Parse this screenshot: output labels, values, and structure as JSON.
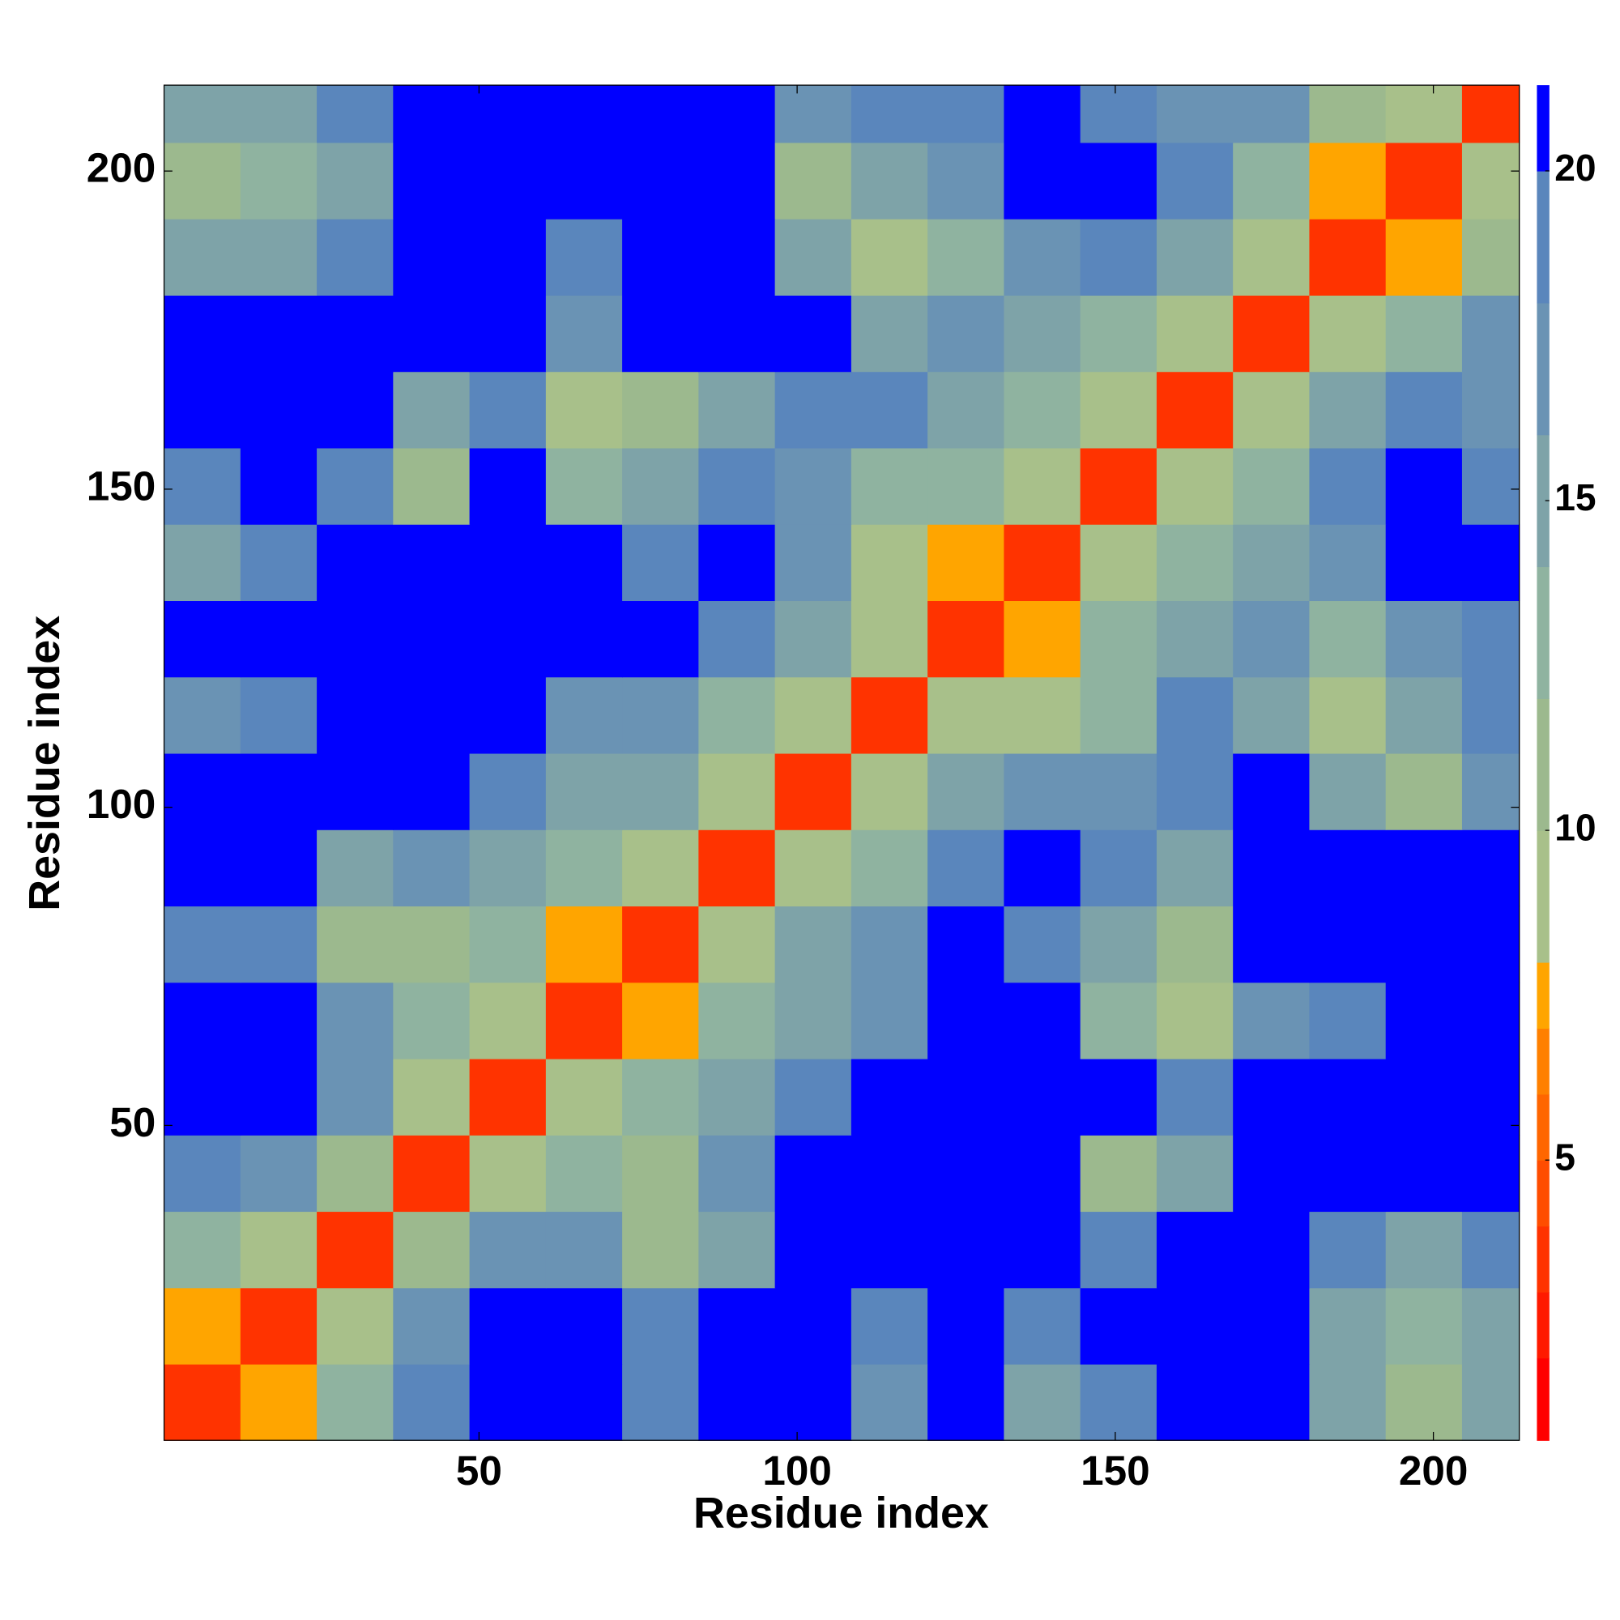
{
  "chart_data": {
    "type": "heatmap",
    "xlabel": "Residue index",
    "ylabel": "Residue index",
    "xbins": [
      0.5,
      12.5,
      24.5,
      36.5,
      48.5,
      60.5,
      72.5,
      84.5,
      96.5,
      108.5,
      120.5,
      132.5,
      144.5,
      156.5,
      168.5,
      180.5,
      192.5,
      204.5,
      213.5
    ],
    "ybins": [
      0.5,
      12.5,
      24.5,
      36.5,
      48.5,
      60.5,
      72.5,
      84.5,
      96.5,
      108.5,
      120.5,
      132.5,
      144.5,
      156.5,
      168.5,
      180.5,
      192.5,
      204.5,
      213.5
    ],
    "z": [
      [
        3,
        7,
        12,
        18,
        21,
        21,
        19,
        21,
        21,
        17,
        21,
        15,
        19,
        21,
        21,
        14,
        11,
        14
      ],
      [
        7,
        3,
        9,
        17,
        21,
        21,
        18,
        21,
        21,
        18,
        21,
        19,
        21,
        21,
        21,
        14,
        12,
        15
      ],
      [
        12,
        9,
        3,
        11,
        16,
        17,
        10,
        15,
        21,
        20,
        21,
        21,
        18,
        21,
        21,
        19,
        15,
        18
      ],
      [
        18,
        17,
        11,
        3,
        8,
        13,
        11,
        17,
        21,
        21,
        21,
        21,
        11,
        15,
        21,
        21,
        21,
        21
      ],
      [
        21,
        21,
        16,
        8,
        3,
        8,
        12,
        15,
        19,
        21,
        21,
        21,
        21,
        18,
        21,
        21,
        21,
        21
      ],
      [
        21,
        21,
        17,
        13,
        8,
        3,
        7,
        12,
        15,
        17,
        21,
        21,
        13,
        9,
        17,
        19,
        21,
        21
      ],
      [
        19,
        18,
        10,
        11,
        12,
        7,
        3,
        9,
        14,
        17,
        21,
        19,
        15,
        11,
        21,
        21,
        21,
        21
      ],
      [
        21,
        21,
        15,
        17,
        15,
        12,
        9,
        3,
        8,
        13,
        18,
        21,
        18,
        15,
        21,
        21,
        21,
        21
      ],
      [
        21,
        21,
        21,
        21,
        19,
        15,
        14,
        8,
        3,
        8,
        14,
        16,
        17,
        19,
        21,
        15,
        10,
        16
      ],
      [
        17,
        18,
        20,
        21,
        21,
        17,
        17,
        13,
        8,
        3,
        9,
        9,
        13,
        18,
        15,
        9,
        14,
        18
      ],
      [
        21,
        21,
        21,
        21,
        21,
        21,
        21,
        18,
        14,
        9,
        3,
        7,
        13,
        14,
        17,
        13,
        17,
        19
      ],
      [
        15,
        19,
        21,
        21,
        21,
        21,
        19,
        21,
        16,
        9,
        7,
        3,
        9,
        13,
        15,
        17,
        21,
        21
      ],
      [
        19,
        21,
        18,
        11,
        21,
        13,
        15,
        18,
        17,
        13,
        13,
        9,
        3,
        8,
        13,
        18,
        21,
        19
      ],
      [
        21,
        21,
        21,
        15,
        18,
        9,
        11,
        15,
        19,
        18,
        14,
        13,
        8,
        3,
        8,
        14,
        19,
        17
      ],
      [
        21,
        21,
        21,
        21,
        21,
        17,
        21,
        21,
        21,
        15,
        17,
        15,
        13,
        8,
        3,
        9,
        13,
        16
      ],
      [
        14,
        14,
        19,
        21,
        21,
        19,
        21,
        21,
        15,
        9,
        13,
        17,
        18,
        14,
        9,
        3,
        7,
        10
      ],
      [
        11,
        12,
        15,
        21,
        21,
        21,
        21,
        21,
        10,
        14,
        17,
        21,
        21,
        19,
        13,
        7,
        3,
        8
      ],
      [
        14,
        15,
        18,
        21,
        21,
        21,
        21,
        21,
        16,
        18,
        19,
        21,
        19,
        17,
        16,
        10,
        8,
        3
      ]
    ],
    "xlim": [
      0.5,
      213.5
    ],
    "ylim": [
      0.5,
      213.5
    ],
    "xticks": [
      50,
      100,
      150,
      200
    ],
    "yticks": [
      50,
      100,
      150,
      200
    ],
    "colorbar": {
      "lim": [
        0.75,
        21.3
      ],
      "ticks": [
        5,
        10,
        15,
        20
      ],
      "levels": [
        0.75,
        2,
        3,
        4,
        5,
        6,
        7,
        8,
        10,
        12,
        14,
        16,
        18,
        20,
        21.3
      ],
      "colors": [
        "#ff0000",
        "#ff1a00",
        "#ff3300",
        "#ff4d00",
        "#ff6600",
        "#ff8000",
        "#ffa500",
        "#a8c08a",
        "#9cb98e",
        "#8fb3a0",
        "#7ea3a8",
        "#6a93b4",
        "#5a86bc",
        "#0000ff"
      ]
    }
  }
}
